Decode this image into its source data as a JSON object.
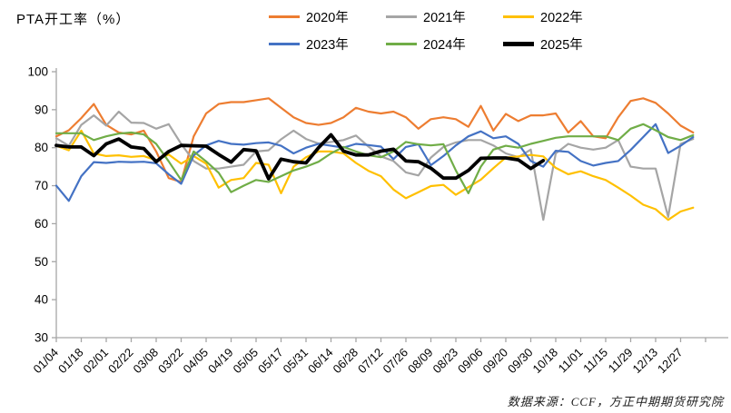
{
  "title": "PTA开工率（%）",
  "source_note": "数据来源：CCF，方正中期期货研究院",
  "accent_colors": {
    "orange": "#ED7D31",
    "gray": "#A5A5A5",
    "yellow": "#FFC000",
    "blue": "#4472C4",
    "green": "#70AD47",
    "black": "#000000",
    "axis": "#A6A6A6"
  },
  "chart_data": {
    "type": "line",
    "title": "PTA开工率（%）",
    "xlabel": "",
    "ylabel": "",
    "ylim": [
      30,
      100
    ],
    "y_ticks": [
      30,
      40,
      50,
      60,
      70,
      80,
      90,
      100
    ],
    "grid": false,
    "legend_position": "top",
    "x_tick_labels": [
      "01/04",
      "01/18",
      "02/01",
      "02/22",
      "03/08",
      "03/22",
      "04/05",
      "04/19",
      "05/05",
      "05/17",
      "05/31",
      "06/14",
      "06/28",
      "07/12",
      "07/26",
      "08/09",
      "08/23",
      "09/06",
      "09/20",
      "09/30",
      "10/18",
      "11/01",
      "11/15",
      "11/29",
      "12/13",
      "12/27"
    ],
    "series": [
      {
        "name": "2020年",
        "color": "#ED7D31",
        "width": 2.2,
        "values": [
          83,
          84.6,
          87.8,
          91.5,
          86,
          84,
          83.5,
          84.5,
          79,
          72,
          71,
          83,
          89,
          91.5,
          92,
          92,
          92.5,
          93,
          90.5,
          88,
          86.5,
          86,
          86.5,
          88,
          90.5,
          89.5,
          89,
          89.5,
          88,
          85,
          87.5,
          88,
          87.5,
          85.5,
          91,
          84.5,
          88.9,
          87,
          88.5,
          88.5,
          89,
          84,
          87,
          83,
          82.5,
          88,
          92.3,
          93,
          91.8,
          89,
          85.8,
          84
        ]
      },
      {
        "name": "2021年",
        "color": "#A5A5A5",
        "width": 2.2,
        "values": [
          82.5,
          80.5,
          86,
          88.5,
          85.8,
          89.5,
          86.6,
          86.5,
          85,
          86.2,
          81,
          76.5,
          74.5,
          74.5,
          75,
          75.5,
          79,
          79.3,
          82.2,
          84.5,
          82.3,
          81.1,
          81.5,
          82,
          83.2,
          80.3,
          77.7,
          76.5,
          73.5,
          72.7,
          77.4,
          80.2,
          81.4,
          82,
          82,
          80.6,
          78.5,
          77.5,
          79.5,
          61,
          78.5,
          81,
          80,
          79.5,
          80,
          82,
          75,
          74.5,
          74.5,
          61.8,
          81,
          82.3
        ]
      },
      {
        "name": "2022年",
        "color": "#FFC000",
        "width": 2.2,
        "values": [
          80.5,
          79.3,
          84.5,
          78.5,
          77.8,
          78,
          77.6,
          77.8,
          76.7,
          78.2,
          75.8,
          77.8,
          75.8,
          69.5,
          71.5,
          72,
          76,
          75.5,
          68,
          75,
          77.5,
          79,
          79,
          78.5,
          76,
          73.9,
          72.5,
          69,
          66.7,
          68.3,
          69.9,
          70.2,
          67.6,
          69.6,
          71.6,
          74.6,
          77.4,
          77.7,
          78.1,
          77.7,
          74.7,
          73,
          73.8,
          72.5,
          71.5,
          69.5,
          67.4,
          65,
          63.8,
          61,
          63.2,
          64.2
        ]
      },
      {
        "name": "2023年",
        "color": "#4472C4",
        "width": 2.2,
        "values": [
          70,
          66,
          72.5,
          76.2,
          76,
          76.3,
          76.2,
          76.3,
          75.9,
          73,
          70.5,
          78,
          80.6,
          81.8,
          81,
          80.8,
          81.2,
          81.4,
          80.5,
          78.5,
          80,
          81,
          80.5,
          80,
          81,
          80.7,
          80.3,
          77,
          80.2,
          80.9,
          75.4,
          77.8,
          80.6,
          83,
          84.3,
          82.5,
          83,
          81,
          76.5,
          75,
          79.2,
          78.9,
          76.5,
          75.3,
          76,
          76.5,
          79.4,
          82.8,
          86.2,
          78.6,
          80.5,
          82.8
        ]
      },
      {
        "name": "2024年",
        "color": "#70AD47",
        "width": 2.2,
        "values": [
          83.8,
          83.8,
          83.8,
          82,
          83,
          83.7,
          84,
          83.5,
          81,
          76.4,
          71.5,
          79,
          76.4,
          73.4,
          68.3,
          70,
          71.5,
          71,
          72.5,
          74,
          75,
          76.3,
          78.5,
          80.2,
          79,
          78,
          77.5,
          79,
          81.5,
          80.9,
          80.6,
          80.9,
          74,
          68,
          75,
          79.5,
          80.5,
          80,
          81,
          81.8,
          82.6,
          83,
          83,
          83,
          83,
          82,
          85,
          86.2,
          84.6,
          82.8,
          82,
          83.3
        ]
      },
      {
        "name": "2025年",
        "color": "#000000",
        "width": 3.8,
        "values": [
          80.6,
          80.2,
          80.2,
          77.9,
          81,
          82.3,
          80.2,
          79.8,
          76.3,
          79,
          80.6,
          80.5,
          80.4,
          78.2,
          76.2,
          79.5,
          79.2,
          71.8,
          77,
          76.3,
          76,
          80,
          83.4,
          79.1,
          78.1,
          78.1,
          79.1,
          79.6,
          76.5,
          76.3,
          74.6,
          72,
          72,
          74,
          77.2,
          77.3,
          77.3,
          76.8,
          74.5,
          76.6,
          null,
          null,
          null,
          null,
          null,
          null,
          null,
          null,
          null,
          null,
          null,
          null
        ]
      }
    ]
  }
}
